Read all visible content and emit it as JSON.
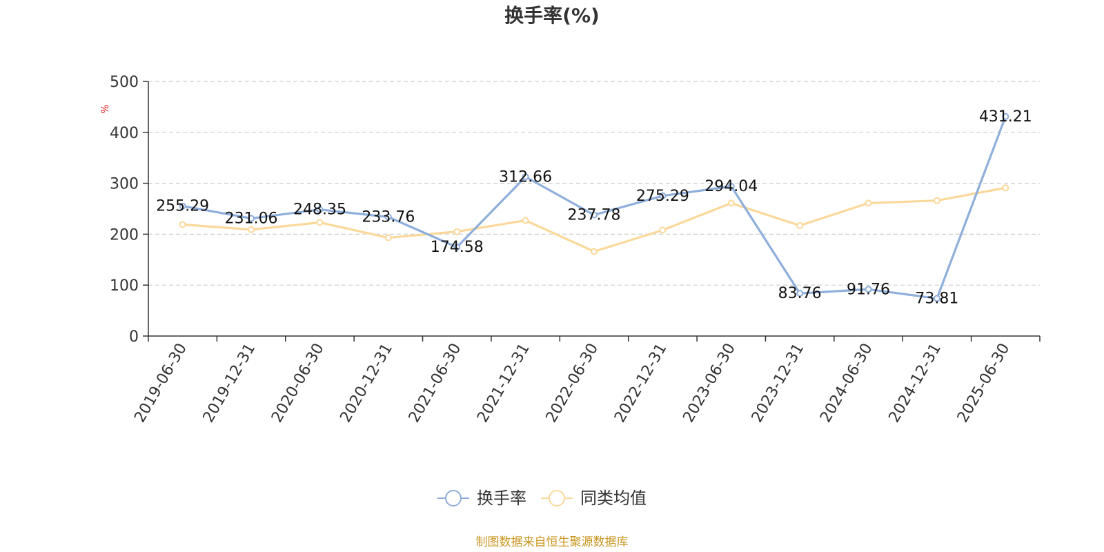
{
  "chart_data": {
    "type": "line",
    "title": "换手率(%)",
    "ylabel": "%",
    "ylim": [
      0,
      500
    ],
    "yticks": [
      0,
      100,
      200,
      300,
      400,
      500
    ],
    "grid": true,
    "legend_position": "bottom-center",
    "categories": [
      "2019-06-30",
      "2019-12-31",
      "2020-06-30",
      "2020-12-31",
      "2021-06-30",
      "2021-12-31",
      "2022-06-30",
      "2022-12-31",
      "2023-06-30",
      "2023-12-31",
      "2024-06-30",
      "2024-12-31",
      "2025-06-30"
    ],
    "series": [
      {
        "name": "换手率",
        "color": "#8eaedb",
        "values": [
          255.29,
          231.06,
          248.35,
          233.76,
          174.58,
          312.66,
          237.78,
          275.29,
          294.04,
          83.76,
          91.76,
          73.81,
          431.21
        ],
        "labels": [
          "255.29",
          "231.06",
          "248.35",
          "233.76",
          "174.58",
          "312.66",
          "237.78",
          "275.29",
          "294.04",
          "83.76",
          "91.76",
          "73.81",
          "431.21"
        ]
      },
      {
        "name": "同类均值",
        "color": "#fbd89a",
        "values": [
          219,
          209,
          223,
          193,
          205,
          227,
          166,
          208,
          261,
          217,
          261,
          266,
          291
        ]
      }
    ]
  },
  "source": {
    "text": "制图数据来自恒生聚源数据库",
    "color": "#c8961e"
  },
  "colors": {
    "axis": "#333333",
    "grid": "#cccccc",
    "unit_label": "#e02020"
  }
}
